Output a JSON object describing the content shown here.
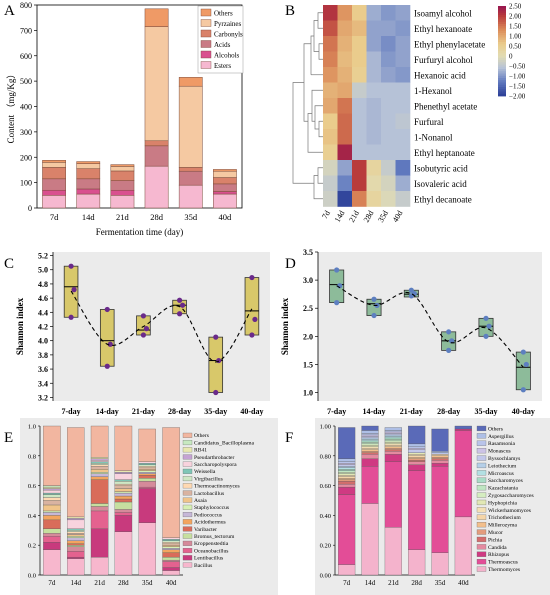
{
  "colors": {
    "panel_bg": "#ebebeb",
    "box_yellow": "#d8c86a",
    "box_green": "#8dbb9a",
    "point_purple": "#6a2a8a",
    "point_blue": "#5d7fc0",
    "A": [
      "#f6b8d0",
      "#d9508f",
      "#c97b85",
      "#d9826a",
      "#f5c9a2",
      "#ef9a66"
    ],
    "E": [
      "#f7b7cd",
      "#c83a7d",
      "#e4628f",
      "#d58a9a",
      "#c6df9f",
      "#d96c5a",
      "#f3a55f",
      "#c6b7d8",
      "#d7f0b5",
      "#f0c48a",
      "#d9b3a1",
      "#ffd9b3",
      "#cfe7c4",
      "#7fc6b6",
      "#f8d3de",
      "#c5a3d3",
      "#e8e8b0",
      "#c7e9c0",
      "#f2b6a0",
      "#b8d3ea",
      "#cbc3e3",
      "#c7dfe6",
      "#b9b6dc"
    ],
    "F": [
      "#f4b3cc",
      "#e34d97",
      "#cf3a82",
      "#e48aa0",
      "#d46d6d",
      "#e39c7d",
      "#f3bf8c",
      "#f5d5a8",
      "#f4e0b5",
      "#e2e8b5",
      "#d5edc0",
      "#bfe6c2",
      "#a8dcc6",
      "#b3e0e3",
      "#b5cfe8",
      "#c2c7ea",
      "#ccc3e6",
      "#b9c4ea",
      "#aebfe6",
      "#5a6ab8"
    ]
  },
  "heatmap": {
    "columns": [
      "7d",
      "14d",
      "21d",
      "28d",
      "35d",
      "40d"
    ],
    "rows": [
      "Isoamyl alcohol",
      "Ethyl hexanoate",
      "Ethyl phenylacetate",
      "Furfuryl alcohol",
      "Hexanoic acid",
      "1-Hexanol",
      "Phenethyl acetate",
      "Furfural",
      "1-Nonanol",
      "Ethyl heptanoate",
      "Isobutyric acid",
      "Isovaleric acid",
      "Ethyl decanoate"
    ],
    "values": [
      [
        2.1,
        1.2,
        0.6,
        -0.8,
        -1.0,
        -0.9
      ],
      [
        1.8,
        1.0,
        0.8,
        -0.9,
        -0.9,
        -1.0
      ],
      [
        1.5,
        0.9,
        0.6,
        -0.9,
        -1.1,
        -0.9
      ],
      [
        1.4,
        0.8,
        0.6,
        -0.7,
        -1.0,
        -0.9
      ],
      [
        1.2,
        0.9,
        0.5,
        -0.7,
        -0.9,
        -1.0
      ],
      [
        0.9,
        1.0,
        -0.4,
        -0.6,
        -0.6,
        -0.6
      ],
      [
        1.0,
        1.5,
        -0.6,
        -0.7,
        -0.6,
        -0.6
      ],
      [
        0.6,
        1.6,
        -0.6,
        -0.7,
        -0.6,
        -0.5
      ],
      [
        0.7,
        1.6,
        -0.6,
        -0.7,
        -0.6,
        -0.6
      ],
      [
        0.5,
        2.3,
        -0.6,
        -0.6,
        -0.6,
        -0.6
      ],
      [
        -0.2,
        -0.9,
        2.0,
        0.3,
        -0.4,
        -1.3
      ],
      [
        -0.4,
        -1.2,
        2.0,
        0.1,
        -0.2,
        -0.8
      ],
      [
        -0.3,
        -1.9,
        1.4,
        0.3,
        -0.1,
        -0.4
      ]
    ],
    "colorbar": {
      "min": -2.0,
      "max": 2.5,
      "ticks": [
        "2.50",
        "2.00",
        "1.50",
        "1.00",
        "0.50",
        "0",
        "−0.50",
        "−1.00",
        "−1.50",
        "−2.00"
      ],
      "tick_values": [
        2.5,
        2.0,
        1.5,
        1.0,
        0.5,
        0,
        -0.5,
        -1.0,
        -1.5,
        -2.0
      ]
    }
  },
  "chart_data": [
    {
      "panel": "A",
      "type": "bar",
      "stacked": true,
      "categories": [
        "7d",
        "14d",
        "21d",
        "28d",
        "35d",
        "40d"
      ],
      "ylim": [
        0,
        800
      ],
      "yticks": [
        0,
        100,
        200,
        300,
        400,
        500,
        600,
        700,
        800
      ],
      "ylabel": "Content （mg/Kg）",
      "xlabel": "Fermentation time (day)",
      "legend_position": "top-right",
      "series": [
        {
          "name": "Esters",
          "values": [
            50,
            55,
            50,
            165,
            90,
            55
          ]
        },
        {
          "name": "Alcohols",
          "values": [
            20,
            20,
            20,
            0,
            0,
            10
          ]
        },
        {
          "name": "Acids",
          "values": [
            45,
            40,
            38,
            80,
            55,
            30
          ]
        },
        {
          "name": "Carbonyls",
          "values": [
            45,
            40,
            38,
            20,
            15,
            25
          ]
        },
        {
          "name": "Pyrzaines",
          "values": [
            20,
            20,
            18,
            450,
            320,
            25
          ]
        },
        {
          "name": "Others",
          "values": [
            8,
            8,
            7,
            70,
            35,
            7
          ]
        }
      ]
    },
    {
      "panel": "B",
      "type": "heatmap",
      "x": [
        "7d",
        "14d",
        "21d",
        "28d",
        "35d",
        "40d"
      ],
      "y": [
        "Isoamyl alcohol",
        "Ethyl hexanoate",
        "Ethyl phenylacetate",
        "Furfuryl alcohol",
        "Hexanoic acid",
        "1-Hexanol",
        "Phenethyl acetate",
        "Furfural",
        "1-Nonanol",
        "Ethyl heptanoate",
        "Isobutyric acid",
        "Isovaleric acid",
        "Ethyl decanoate"
      ],
      "zlim": [
        -2.0,
        2.5
      ]
    },
    {
      "panel": "C",
      "type": "box",
      "categories": [
        "7-day",
        "14-day",
        "21-day",
        "28-day",
        "35-day",
        "40-day"
      ],
      "ylabel": "Shannon index",
      "ylim": [
        3.15,
        5.25
      ],
      "yticks": [
        3.2,
        3.4,
        3.6,
        3.8,
        4.0,
        4.2,
        4.4,
        4.6,
        4.8,
        5.0,
        5.2
      ],
      "boxes": [
        {
          "low": 4.33,
          "q1": 4.33,
          "median": 4.76,
          "q3": 5.05,
          "high": 5.05,
          "mean": 4.7,
          "points": [
            5.05,
            4.72,
            4.33
          ]
        },
        {
          "low": 3.64,
          "q1": 3.64,
          "median": 4.0,
          "q3": 4.44,
          "high": 4.44,
          "mean": 3.95,
          "points": [
            4.44,
            3.95,
            3.64
          ]
        },
        {
          "low": 4.08,
          "q1": 4.08,
          "median": 4.15,
          "q3": 4.35,
          "high": 4.35,
          "mean": 4.2,
          "points": [
            4.35,
            4.17,
            4.08
          ]
        },
        {
          "low": 4.38,
          "q1": 4.38,
          "median": 4.5,
          "q3": 4.57,
          "high": 4.57,
          "mean": 4.48,
          "points": [
            4.57,
            4.5,
            4.38
          ]
        },
        {
          "low": 3.27,
          "q1": 3.27,
          "median": 3.72,
          "q3": 4.05,
          "high": 4.05,
          "mean": 3.7,
          "points": [
            4.05,
            3.72,
            3.27
          ]
        },
        {
          "low": 4.08,
          "q1": 4.08,
          "median": 4.42,
          "q3": 4.89,
          "high": 4.89,
          "mean": 4.45,
          "points": [
            4.89,
            4.3,
            4.08
          ]
        }
      ]
    },
    {
      "panel": "D",
      "type": "box",
      "categories": [
        "7-day",
        "14-day",
        "21-day",
        "28-day",
        "35-day",
        "40-day"
      ],
      "ylabel": "Shannon index",
      "ylim": [
        0.85,
        3.5
      ],
      "yticks": [
        1.0,
        1.5,
        2.0,
        2.5,
        3.0,
        3.5
      ],
      "boxes": [
        {
          "low": 2.6,
          "q1": 2.6,
          "median": 2.92,
          "q3": 3.18,
          "high": 3.18,
          "mean": 2.9,
          "points": [
            3.18,
            2.9,
            2.6
          ]
        },
        {
          "low": 2.37,
          "q1": 2.37,
          "median": 2.58,
          "q3": 2.66,
          "high": 2.66,
          "mean": 2.55,
          "points": [
            2.66,
            2.55,
            2.37
          ]
        },
        {
          "low": 2.7,
          "q1": 2.7,
          "median": 2.75,
          "q3": 2.82,
          "high": 2.82,
          "mean": 2.76,
          "points": [
            2.82,
            2.76,
            2.72
          ]
        },
        {
          "low": 1.75,
          "q1": 1.75,
          "median": 1.92,
          "q3": 2.08,
          "high": 2.08,
          "mean": 1.9,
          "points": [
            2.08,
            1.92,
            1.75
          ]
        },
        {
          "low": 2.0,
          "q1": 2.0,
          "median": 2.18,
          "q3": 2.32,
          "high": 2.32,
          "mean": 2.15,
          "points": [
            2.32,
            2.18,
            2.0
          ]
        },
        {
          "low": 1.05,
          "q1": 1.05,
          "median": 1.45,
          "q3": 1.72,
          "high": 1.72,
          "mean": 1.45,
          "points": [
            1.72,
            1.5,
            1.05
          ]
        }
      ]
    },
    {
      "panel": "E",
      "type": "bar",
      "stacked": true,
      "categories": [
        "7d",
        "14d",
        "21d",
        "28d",
        "35d",
        "40d"
      ],
      "ylim": [
        0,
        1.0
      ],
      "yticks": [
        "0.0",
        "0.2",
        "0.4",
        "0.6",
        "0.8",
        "1.0"
      ],
      "legend": [
        "Others",
        "Candidatus_Bacilloplasma",
        "RB41",
        "Pseudarthrobacter",
        "Saccharopolyspora",
        "Weissella",
        "Virgibacillus",
        "Thermoactinomyces",
        "Lactobacillus",
        "Asaia",
        "Staphylococcus",
        "Pediococcus",
        "Acidothermus",
        "Varibacter",
        "Bromus_tectorum",
        "Kroppenstedtia",
        "Oceanobacillus",
        "Lentibacillus",
        "Bacillus"
      ],
      "series_bottom_up": [
        {
          "name": "Bacillus",
          "values": [
            0.17,
            0.11,
            0.12,
            0.29,
            0.35,
            0.03
          ]
        },
        {
          "name": "Lentibacillus",
          "values": [
            0.05,
            0.01,
            0.19,
            0.11,
            0.23,
            0.02
          ]
        },
        {
          "name": "Oceanobacillus",
          "values": [
            0.04,
            0.04,
            0.12,
            0.02,
            0.01,
            0.04
          ]
        },
        {
          "name": "Kroppenstedtia",
          "values": [
            0.02,
            0.03,
            0.03,
            0.02,
            0.04,
            0.01
          ]
        },
        {
          "name": "Bromus_tectorum",
          "values": [
            0.03,
            0.01,
            0.02,
            0.05,
            0.02,
            0.02
          ]
        },
        {
          "name": "Varibacter",
          "values": [
            0.06,
            0.01,
            0.16,
            0.02,
            0.02,
            0.03
          ]
        },
        {
          "name": "Acidothermus",
          "values": [
            0.03,
            0.02,
            0.02,
            0.02,
            0.01,
            0.02
          ]
        },
        {
          "name": "Pediococcus",
          "values": [
            0.02,
            0.02,
            0.02,
            0.02,
            0.01,
            0.01
          ]
        },
        {
          "name": "Staphylococcus",
          "values": [
            0.01,
            0.01,
            0.01,
            0.01,
            0.01,
            0.01
          ]
        },
        {
          "name": "Asaia",
          "values": [
            0.04,
            0.01,
            0.02,
            0.02,
            0.01,
            0.01
          ]
        },
        {
          "name": "Lactobacillus",
          "values": [
            0.03,
            0.01,
            0.02,
            0.02,
            0.01,
            0.01
          ]
        },
        {
          "name": "Thermoactinomyces",
          "values": [
            0.02,
            0.01,
            0.01,
            0.01,
            0.01,
            0.01
          ]
        },
        {
          "name": "Virgibacillus",
          "values": [
            0.02,
            0.01,
            0.01,
            0.02,
            0.01,
            0.01
          ]
        },
        {
          "name": "Weissella",
          "values": [
            0.01,
            0.01,
            0.01,
            0.01,
            0.01,
            0.01
          ]
        },
        {
          "name": "Saccharopolyspora",
          "values": [
            0.02,
            0.06,
            0.01,
            0.04,
            0.01,
            0.01
          ]
        },
        {
          "name": "Pseudarthrobacter",
          "values": [
            0.01,
            0.01,
            0.01,
            0.01,
            0.0,
            0.0
          ]
        },
        {
          "name": "RB41",
          "values": [
            0.01,
            0.01,
            0.01,
            0.01,
            0.0,
            0.0
          ]
        },
        {
          "name": "Candidatus_Bacilloplasma",
          "values": [
            0.01,
            0.0,
            0.0,
            0.0,
            0.0,
            0.0
          ]
        },
        {
          "name": "Others",
          "values": [
            0.4,
            0.6,
            0.22,
            0.3,
            0.22,
            0.74
          ]
        }
      ]
    },
    {
      "panel": "F",
      "type": "bar",
      "stacked": true,
      "categories": [
        "7d",
        "14d",
        "21d",
        "28d",
        "35d",
        "40d"
      ],
      "ylim": [
        0,
        1.0
      ],
      "yticks": [
        "0.00",
        "0.20",
        "0.40",
        "0.60",
        "0.80",
        "1.00"
      ],
      "legend": [
        "Others",
        "Aspergillus",
        "Rasamsonia",
        "Monascus",
        "Byssochlamys",
        "Leiothecium",
        "Microascus",
        "Saccharomyces",
        "Kazachstania",
        "Zygosaccharomyces",
        "Hyphopichia",
        "Wickerhamomyces",
        "Trichothecium",
        "Millerozyma",
        "Mucor",
        "Pichia",
        "Candida",
        "Rhizopus",
        "Thermoascus",
        "Thermomyces"
      ],
      "series_bottom_up": [
        {
          "name": "Thermomyces",
          "values": [
            0.07,
            0.48,
            0.32,
            0.17,
            0.15,
            0.39
          ]
        },
        {
          "name": "Thermoascus",
          "values": [
            0.47,
            0.25,
            0.44,
            0.53,
            0.58,
            0.58
          ]
        },
        {
          "name": "Rhizopus",
          "values": [
            0.05,
            0.05,
            0.05,
            0.04,
            0.02,
            0.01
          ]
        },
        {
          "name": "Candida",
          "values": [
            0.02,
            0.03,
            0.02,
            0.02,
            0.02,
            0.0
          ]
        },
        {
          "name": "Pichia",
          "values": [
            0.02,
            0.01,
            0.01,
            0.01,
            0.01,
            0.0
          ]
        },
        {
          "name": "Mucor",
          "values": [
            0.01,
            0.01,
            0.01,
            0.01,
            0.01,
            0.0
          ]
        },
        {
          "name": "Millerozyma",
          "values": [
            0.01,
            0.01,
            0.01,
            0.01,
            0.01,
            0.0
          ]
        },
        {
          "name": "Trichothecium",
          "values": [
            0.01,
            0.01,
            0.01,
            0.01,
            0.01,
            0.0
          ]
        },
        {
          "name": "Wickerhamomyces",
          "values": [
            0.01,
            0.01,
            0.01,
            0.01,
            0.0,
            0.0
          ]
        },
        {
          "name": "Hyphopichia",
          "values": [
            0.01,
            0.01,
            0.01,
            0.01,
            0.0,
            0.0
          ]
        },
        {
          "name": "Zygosaccharomyces",
          "values": [
            0.01,
            0.01,
            0.01,
            0.0,
            0.0,
            0.0
          ]
        },
        {
          "name": "Kazachstania",
          "values": [
            0.01,
            0.01,
            0.01,
            0.0,
            0.0,
            0.0
          ]
        },
        {
          "name": "Saccharomyces",
          "values": [
            0.01,
            0.01,
            0.01,
            0.0,
            0.0,
            0.0
          ]
        },
        {
          "name": "Microascus",
          "values": [
            0.01,
            0.01,
            0.01,
            0.0,
            0.0,
            0.0
          ]
        },
        {
          "name": "Leiothecium",
          "values": [
            0.01,
            0.01,
            0.01,
            0.0,
            0.0,
            0.0
          ]
        },
        {
          "name": "Byssochlamys",
          "values": [
            0.01,
            0.01,
            0.01,
            0.02,
            0.0,
            0.0
          ]
        },
        {
          "name": "Monascus",
          "values": [
            0.01,
            0.01,
            0.01,
            0.01,
            0.0,
            0.0
          ]
        },
        {
          "name": "Rasamsonia",
          "values": [
            0.01,
            0.01,
            0.01,
            0.01,
            0.01,
            0.0
          ]
        },
        {
          "name": "Aspergillus",
          "values": [
            0.02,
            0.02,
            0.02,
            0.02,
            0.01,
            0.0
          ]
        },
        {
          "name": "Others",
          "values": [
            0.21,
            0.03,
            0.0,
            0.12,
            0.15,
            0.02
          ]
        }
      ]
    }
  ],
  "panel_labels": {
    "A": "A",
    "B": "B",
    "C": "C",
    "D": "D",
    "E": "E",
    "F": "F"
  }
}
